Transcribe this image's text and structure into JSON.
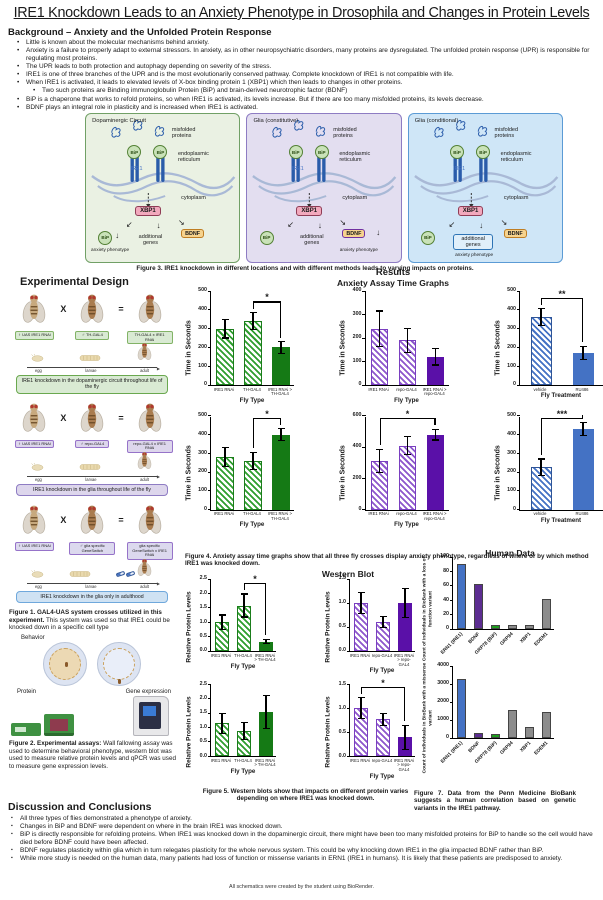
{
  "title": "IRE1 Knockdown Leads to an Anxiety Phenotype in Drosophila and Changes in Protein Levels",
  "background": {
    "heading": "Background – Anxiety and the Unfolded Protein Response",
    "bullets": [
      {
        "level": 1,
        "text": "Little is known about the molecular mechanisms behind anxiety."
      },
      {
        "level": 1,
        "text": "Anxiety is a failure to properly adapt to external stressors. In anxiety, as in other neuropsychiatric disorders, many proteins are dysregulated. The unfolded protein response (UPR) is responsible for regulating most proteins."
      },
      {
        "level": 1,
        "text": "The UPR leads to both protection and autophagy depending on severity of the stress."
      },
      {
        "level": 1,
        "text": "IRE1 is one of three branches of the UPR and is the most evolutionarily conserved pathway. Complete knockdown of IRE1 is not compatible with life."
      },
      {
        "level": 1,
        "text": "When IRE1 is activated, it leads to elevated levels of X-box binding protein 1 (XBP1) which then leads to changes in other proteins."
      },
      {
        "level": 2,
        "text": "Two such proteins are Binding immunoglobulin Protein (BiP) and brain-derived neurotrophic factor (BDNF)"
      },
      {
        "level": 1,
        "text": "BiP is a chaperone that works to refold proteins, so when IRE1 is activated, its levels increase. But if there are too many misfolded proteins, its levels decrease."
      },
      {
        "level": 1,
        "text": "BDNF plays an integral role in plasticity and is increased when IRE1 is activated."
      }
    ]
  },
  "figure3": {
    "caption": "Figure 3. IRE1 knockdown in different locations and with different methods leads to varying impacts on proteins.",
    "labels": {
      "misfolded": "misfolded proteins",
      "er": "endoplasmic reticulum",
      "cytoplasm": "cytoplasm",
      "ire1": "IRE1",
      "xbp1": "XBP1",
      "bip": "BiP",
      "genes": "additional genes",
      "bdnf": "BDNF",
      "anxiety": "anxiety phenotype",
      "down_arrow": "↓",
      "arrow_left": "↙",
      "arrow_down": "↓",
      "arrow_right": "↘"
    },
    "panels": [
      {
        "title": "Dopaminergic Circuit",
        "bg": "#eaf1e3",
        "border": "#71a066",
        "anxiety_under": "bip"
      },
      {
        "title": "Glia (constitutive)",
        "bg": "#e3def0",
        "border": "#8e7cc3",
        "anxiety_under": "bdnf"
      },
      {
        "title": "Glia (conditional)",
        "bg": "#cfe6f7",
        "border": "#5b9bd5",
        "anxiety_under": "genes"
      }
    ]
  },
  "experimental_design": {
    "heading": "Experimental Design",
    "x_symbol": "X",
    "eq_symbol": "=",
    "stages": [
      "egg",
      "larvae",
      "adult"
    ],
    "crosses": [
      {
        "female": "♀ UAS IRE1 RNAi",
        "male": "♂ TH-GAL4",
        "result": "TH-GAL4 x IRE1 RNAi",
        "desc": "IRE1 knockdown in the dopaminergic circuit throughout life of the fly",
        "label_bg": "#d9ead3",
        "label_border": "#82b366",
        "desc_bg": "#d9ead3",
        "desc_border": "#6aa84f",
        "pills": false
      },
      {
        "female": "♀ UAS IRE1 RNAi",
        "male": "♂ repo-GAL4",
        "result": "repo-GAL4 x IRE1 RNAi",
        "desc": "IRE1 knockdown in the glia throughout life of the fly",
        "label_bg": "#ddd6ec",
        "label_border": "#9673c9",
        "desc_bg": "#ddd6ec",
        "desc_border": "#8e7cc3",
        "pills": false
      },
      {
        "female": "♀ UAS IRE1 RNAi",
        "male": "♂ glia specific GeneSwitch",
        "result": "glia specific GeneSwitch x IRE1 RNAi",
        "desc": "IRE1 knockdown in the glia only in adulthood",
        "label_bg": "#dcd9ee",
        "label_border": "#9673c9",
        "desc_bg": "#cfe2f3",
        "desc_border": "#6fa8dc",
        "pills": true
      }
    ]
  },
  "figure1": {
    "bold": "Figure 1. GAL4-UAS system crosses utilized in this experiment.",
    "rest": " This system was used so that IRE1 could be knocked down in a specific cell type"
  },
  "figure2": {
    "labels": {
      "behavior": "Behavior",
      "protein": "Protein",
      "gene": "Gene expression"
    },
    "bold": "Figure 2. Experimental assays:",
    "rest": " Wall fallowing assay was used to determine behavioral phenotype, western blot was used to measure relative protein levels and qPCR was used to measure gene expression levels."
  },
  "results": {
    "heading": "Results",
    "anxiety_heading": "Anxiety Assay Time Graphs",
    "western_heading": "Western Blot",
    "human_heading": "Human Data"
  },
  "figure4": {
    "caption": "Figure 4. Anxiety assay time graphs show that all three fly crosses display anxiety phenotype, regardless of where or by which method IRE1 was knocked down."
  },
  "figure5": {
    "caption": "Figure 5. Western blots show that impacts on different protein varies depending on where IRE1 was knocked down."
  },
  "figure7": {
    "caption": "Figure 7. Data from the Penn Medicine BioBank suggests a human correlation based on genetic variants in the IRE1 pathway."
  },
  "discussion": {
    "heading": "Discussion and Conclusions",
    "bullets": [
      "All three types of flies demonstrated a phenotype of anxiety.",
      "Changes in BiP and BDNF were dependent on where in the brain IRE1 was knocked down.",
      "BiP is directly responsible for refolding proteins. When IRE1 was knocked down in the dopaminergic circuit, there might have been too many misfolded proteins for BiP to handle so the cell would have died before BDNF could have been affected.",
      "BDNF regulates plasticity within glia which in turn relegates plasticity for the whole nervous system. This could be why knocking down IRE1 in the glia impacted BDNF rather than BiP.",
      "While more study is needed on the human data, many patients had loss of function or missense variants in ERN1 (IRE1 in humans). It is likely that these patients are predisposed to anxiety."
    ]
  },
  "footer": "All schematics were created by the student using BioRender.",
  "theme_colors": {
    "green_stripe": "#2f9e2f",
    "green_solid": "#157a15",
    "purple_stripe": "#8d57cc",
    "purple_solid": "#5a10a8",
    "blue_stripe": "#4472c4",
    "blue_solid": "#4472c4",
    "human_blue": "#4472c4",
    "human_purple": "#5c2d91",
    "human_green": "#1d9e1d",
    "human_gray": "#8c8c8c"
  },
  "chart_data": [
    {
      "id": "anxiety-th-lifelong",
      "type": "bar",
      "group": "anxiety",
      "theme": "green",
      "ylabel": "Time in Seconds",
      "xlabel": "Fly Type",
      "ylim": [
        0,
        500
      ],
      "ystep": 100,
      "categories": [
        "IRE1 RNAi",
        "TH-GAL4",
        "IRE1 RNAi > TH-GAL4"
      ],
      "values": [
        300,
        340,
        200
      ],
      "errors": [
        50,
        45,
        30
      ],
      "solid": [
        false,
        false,
        true
      ],
      "sig": [
        {
          "from": 1,
          "to": 2,
          "label": "*"
        }
      ]
    },
    {
      "id": "anxiety-repo-lifelong",
      "type": "bar",
      "group": "anxiety",
      "theme": "purple",
      "ylabel": "Time in Seconds",
      "xlabel": "Fly Type",
      "ylim": [
        0,
        400
      ],
      "ystep": 100,
      "categories": [
        "IRE1 RNAi",
        "repo-GAL4",
        "IRE1 RNAi > repo-GAL4"
      ],
      "values": [
        240,
        190,
        120
      ],
      "errors": [
        75,
        50,
        35
      ],
      "solid": [
        false,
        false,
        true
      ],
      "sig": []
    },
    {
      "id": "anxiety-geneswitch-a",
      "type": "bar",
      "group": "anxiety",
      "theme": "blue",
      "ylabel": "Time in Seconds",
      "xlabel": "Fly Treatment",
      "ylim": [
        0,
        500
      ],
      "ystep": 100,
      "categories": [
        "vehicle",
        "RU486"
      ],
      "values": [
        360,
        170
      ],
      "errors": [
        45,
        35
      ],
      "solid": [
        false,
        true
      ],
      "sig": [
        {
          "from": 0,
          "to": 1,
          "label": "**"
        }
      ]
    },
    {
      "id": "anxiety-th-b",
      "type": "bar",
      "group": "anxiety",
      "theme": "green",
      "ylabel": "Time in Seconds",
      "xlabel": "Fly Type",
      "ylim": [
        0,
        500
      ],
      "ystep": 100,
      "categories": [
        "IRE1 RNAi",
        "TH-GAL4",
        "IRE1 RNAi > TH-GAL4"
      ],
      "values": [
        280,
        260,
        400
      ],
      "errors": [
        50,
        45,
        30
      ],
      "solid": [
        false,
        false,
        true
      ],
      "sig": [
        {
          "from": 1,
          "to": 2,
          "label": "*"
        }
      ]
    },
    {
      "id": "anxiety-repo-b",
      "type": "bar",
      "group": "anxiety",
      "theme": "purple",
      "ylabel": "Time in Seconds",
      "xlabel": "Fly Type",
      "ylim": [
        0,
        600
      ],
      "ystep": 200,
      "categories": [
        "IRE1 RNAi",
        "repo-GAL4",
        "IRE1 RNAi > repo-GAL4"
      ],
      "values": [
        310,
        410,
        480
      ],
      "errors": [
        75,
        55,
        35
      ],
      "solid": [
        false,
        false,
        true
      ],
      "sig": [
        {
          "from": 0,
          "to": 2,
          "label": "*"
        }
      ]
    },
    {
      "id": "anxiety-geneswitch-b",
      "type": "bar",
      "group": "anxiety",
      "theme": "blue",
      "ylabel": "Time in Seconds",
      "xlabel": "Fly Treatment",
      "ylim": [
        0,
        500
      ],
      "ystep": 100,
      "categories": [
        "vehicle",
        "RU486"
      ],
      "values": [
        225,
        430
      ],
      "errors": [
        45,
        35
      ],
      "solid": [
        false,
        true
      ],
      "sig": [
        {
          "from": 0,
          "to": 1,
          "label": "***"
        }
      ]
    },
    {
      "id": "wb-bip-th",
      "type": "bar",
      "group": "western",
      "theme": "green",
      "ylabel": "Relative Protein Levels",
      "xlabel": "Fly Type",
      "ylim": [
        0,
        2.5
      ],
      "ystep": 0.5,
      "decimals": 1,
      "categories": [
        "IRE1 RNAi",
        "TH-GAL4",
        "IRE1 RNAi > TH-GAL4"
      ],
      "values": [
        1.0,
        1.58,
        0.33
      ],
      "errors": [
        0.25,
        0.4,
        0.08
      ],
      "solid": [
        false,
        false,
        true
      ],
      "sig": [
        {
          "from": 1,
          "to": 2,
          "label": "*"
        }
      ]
    },
    {
      "id": "wb-bip-repo",
      "type": "bar",
      "group": "western",
      "theme": "purple",
      "ylabel": "Relative Protein Levels",
      "xlabel": "Fly Type",
      "ylim": [
        0,
        1.5
      ],
      "ystep": 0.5,
      "decimals": 1,
      "categories": [
        "IRE1 RNAi",
        "repo-GAL4",
        "IRE1 RNAi > repo-GAL4"
      ],
      "values": [
        1.0,
        0.6,
        1.0
      ],
      "errors": [
        0.22,
        0.11,
        0.3
      ],
      "solid": [
        false,
        false,
        true
      ],
      "sig": []
    },
    {
      "id": "wb-bdnf-th",
      "type": "bar",
      "group": "western",
      "theme": "green",
      "ylabel": "Relative Protein Levels",
      "xlabel": "Fly Type",
      "ylim": [
        0,
        2.5
      ],
      "ystep": 0.5,
      "decimals": 1,
      "categories": [
        "IRE1 RNAi",
        "TH-GAL4",
        "IRE1 RNAi > TH-GAL4"
      ],
      "values": [
        1.15,
        0.88,
        1.55
      ],
      "errors": [
        0.35,
        0.3,
        0.57
      ],
      "solid": [
        false,
        false,
        true
      ],
      "sig": []
    },
    {
      "id": "wb-bdnf-repo",
      "type": "bar",
      "group": "western",
      "theme": "purple",
      "ylabel": "Relative Protein Levels",
      "xlabel": "Fly Type",
      "ylim": [
        0,
        1.5
      ],
      "ystep": 0.5,
      "decimals": 1,
      "categories": [
        "IRE1 RNAi",
        "repo-GAL4",
        "IRE1 RNAi > repo-GAL4"
      ],
      "values": [
        1.0,
        0.77,
        0.4
      ],
      "errors": [
        0.22,
        0.13,
        0.25
      ],
      "solid": [
        false,
        false,
        true
      ],
      "sig": [
        {
          "from": 0,
          "to": 2,
          "label": "*"
        }
      ]
    },
    {
      "id": "human-loss-of-function",
      "type": "bar",
      "group": "human",
      "ylabel": "Count of individuals in BioBank with a loss of function variant",
      "xlabel": "",
      "ylim": [
        0,
        100
      ],
      "ystep": 20,
      "categories": [
        "ERN1 (IRE1)",
        "BDNF",
        "GRP78 (BiP)",
        "GRP94",
        "XBP1",
        "EDEM1"
      ],
      "values": [
        90,
        62,
        5,
        6,
        5,
        41
      ],
      "bar_colors": [
        "#4472c4",
        "#5c2d91",
        "#1d9e1d",
        "#8c8c8c",
        "#8c8c8c",
        "#8c8c8c"
      ]
    },
    {
      "id": "human-missense",
      "type": "bar",
      "group": "human",
      "ylabel": "Count of individuals in BioBank with a missense variant",
      "xlabel": "",
      "ylim": [
        0,
        4000
      ],
      "ystep": 1000,
      "categories": [
        "ERN1 (IRE1)",
        "BDNF",
        "GRP78 (BiP)",
        "GRP94",
        "XBP1",
        "EDEM1"
      ],
      "values": [
        3300,
        270,
        220,
        1550,
        620,
        1450
      ],
      "bar_colors": [
        "#4472c4",
        "#5c2d91",
        "#1d9e1d",
        "#8c8c8c",
        "#8c8c8c",
        "#8c8c8c"
      ]
    }
  ]
}
